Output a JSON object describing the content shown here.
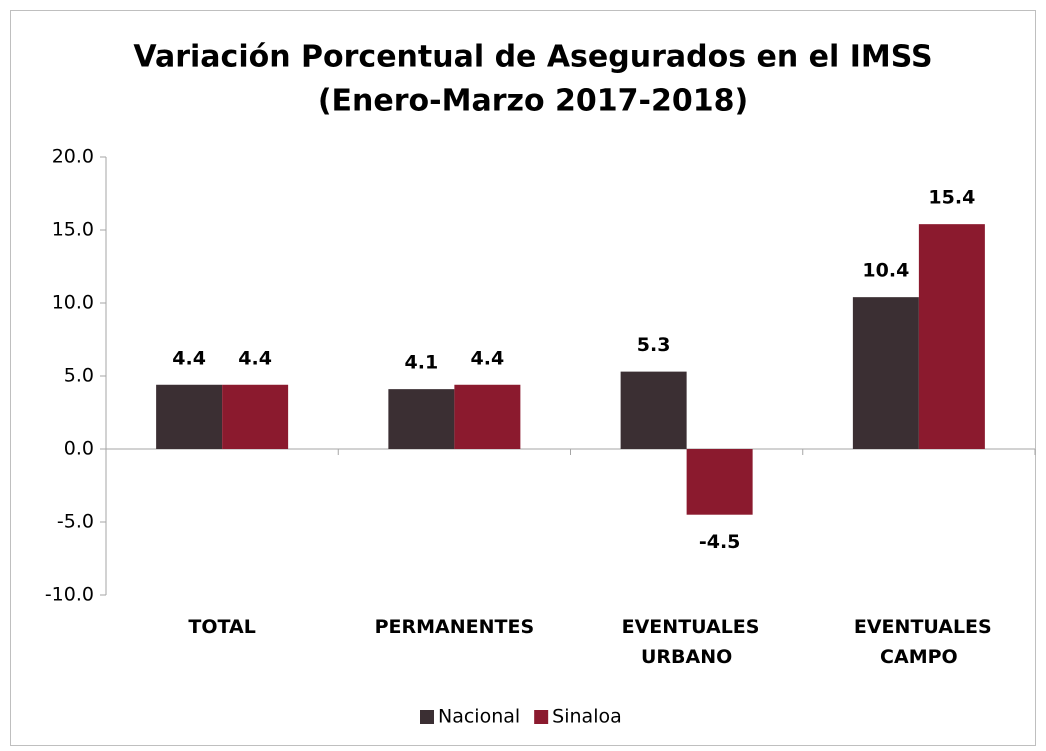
{
  "chart_data": {
    "type": "bar",
    "title": "Variación Porcentual de Asegurados  en el IMSS",
    "subtitle": "(Enero-Marzo  2017-2018)",
    "categories": [
      "TOTAL",
      "PERMANENTES",
      "EVENTUALES URBANO",
      "EVENTUALES CAMPO"
    ],
    "series": [
      {
        "name": "Nacional",
        "color": "#3b2f33",
        "values": [
          4.4,
          4.1,
          5.3,
          10.4
        ]
      },
      {
        "name": "Sinaloa",
        "color": "#8b1a2e",
        "values": [
          4.4,
          4.4,
          -4.5,
          15.4
        ]
      }
    ],
    "ylim": [
      -10,
      20
    ],
    "yticks": [
      {
        "value": -10,
        "label": "-10.0"
      },
      {
        "value": -5,
        "label": "-5.0"
      },
      {
        "value": 0,
        "label": "0.0"
      },
      {
        "value": 5,
        "label": "5.0"
      },
      {
        "value": 10,
        "label": "10.0"
      },
      {
        "value": 15,
        "label": "15.0"
      },
      {
        "value": 20,
        "label": "20.0"
      }
    ],
    "legend": "bottom"
  }
}
